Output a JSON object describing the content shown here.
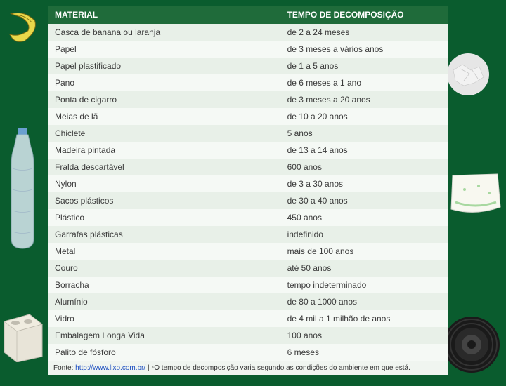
{
  "table": {
    "background_color": "#0a5c2e",
    "header_bg": "#1f6b3a",
    "header_color": "#ffffff",
    "row_even_bg": "#e8f0e8",
    "row_odd_bg": "#f5f9f5",
    "text_color": "#3a3a3a",
    "border_color": "#c8d8c8",
    "font_size_header": 12,
    "font_size_body": 12,
    "columns": [
      {
        "key": "material",
        "label": "MATERIAL",
        "width_pct": 58
      },
      {
        "key": "tempo",
        "label": "TEMPO DE DECOMPOSIÇÃO",
        "width_pct": 42
      }
    ],
    "rows": [
      {
        "material": "Casca de banana ou laranja",
        "tempo": "de 2 a 24 meses"
      },
      {
        "material": "Papel",
        "tempo": "de 3 meses a vários anos"
      },
      {
        "material": "Papel plastificado",
        "tempo": "de 1 a 5 anos"
      },
      {
        "material": "Pano",
        "tempo": "de 6 meses a 1 ano"
      },
      {
        "material": "Ponta de cigarro",
        "tempo": "de 3 meses a 20 anos"
      },
      {
        "material": "Meias de lã",
        "tempo": "de 10 a 20 anos"
      },
      {
        "material": "Chiclete",
        "tempo": "5 anos"
      },
      {
        "material": "Madeira pintada",
        "tempo": "de 13 a 14 anos"
      },
      {
        "material": "Fralda descartável",
        "tempo": "600 anos"
      },
      {
        "material": "Nylon",
        "tempo": "de 3 a 30 anos"
      },
      {
        "material": "Sacos plásticos",
        "tempo": "de 30 a 40 anos"
      },
      {
        "material": "Plástico",
        "tempo": "450 anos"
      },
      {
        "material": "Garrafas plásticas",
        "tempo": "indefinido"
      },
      {
        "material": "Metal",
        "tempo": "mais de 100 anos"
      },
      {
        "material": "Couro",
        "tempo": "até 50 anos"
      },
      {
        "material": "Borracha",
        "tempo": "tempo indeterminado"
      },
      {
        "material": "Alumínio",
        "tempo": "de 80 a 1000 anos"
      },
      {
        "material": "Vidro",
        "tempo": "de 4 mil a 1 milhão de anos"
      },
      {
        "material": "Embalagem Longa Vida",
        "tempo": "100 anos"
      },
      {
        "material": "Palito de fósforo",
        "tempo": "6 meses"
      }
    ]
  },
  "footer": {
    "prefix": "Fonte:  ",
    "link_text": "http://www.lixo.com.br/",
    "link_href": "http://www.lixo.com.br/",
    "suffix": " | *O tempo de decomposição varia segundo as condições do ambiente em que está."
  },
  "icons": {
    "banana": {
      "fill": "#e8d84a",
      "stroke": "#7a6a10"
    },
    "paper_ball": {
      "fill": "#e6e6e6",
      "shadow": "#b8b8b8"
    },
    "bottle": {
      "fill": "#d8e8f0",
      "stroke": "#a0b8c8",
      "cap": "#6aa0d0"
    },
    "diaper": {
      "fill": "#f8f8f0",
      "accent": "#a8d8a0"
    },
    "cigarette": {
      "filter": "#d8a060",
      "paper": "#f0f0e8",
      "ash": "#888"
    },
    "brick": {
      "fill": "#e8e4d8",
      "stroke": "#c0bcb0"
    },
    "tire": {
      "fill": "#1a1a1a",
      "rim": "#444"
    },
    "match": {
      "stick": "#d8b070",
      "head": "#c03020"
    }
  }
}
